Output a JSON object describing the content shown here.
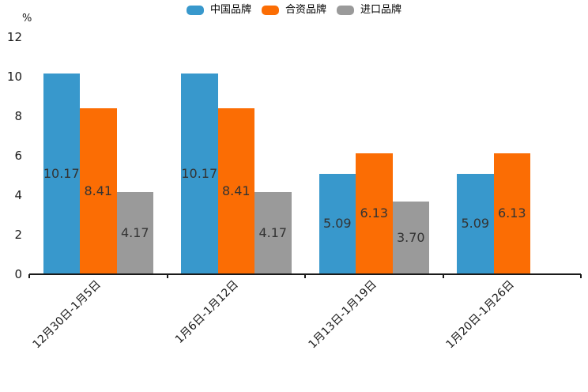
{
  "chart_data": {
    "type": "bar",
    "title": "",
    "ylabel": "%",
    "xlabel": "",
    "ylim": [
      0,
      12
    ],
    "yticks": [
      0,
      2,
      4,
      6,
      8,
      10,
      12
    ],
    "grid": false,
    "legend_position": "top",
    "value_labels": true,
    "categories": [
      "12月30日-1月5日",
      "1月6日-1月12日",
      "1月13日-1月19日",
      "1月20日-1月26日"
    ],
    "series": [
      {
        "name": "中国品牌",
        "color": "#3898CC",
        "values": [
          10.17,
          10.17,
          5.09,
          5.09
        ]
      },
      {
        "name": "合资品牌",
        "color": "#FB6D04",
        "values": [
          8.41,
          8.41,
          6.13,
          6.13
        ]
      },
      {
        "name": "进口品牌",
        "color": "#9A9A9A",
        "values": [
          4.17,
          4.17,
          3.7,
          null
        ]
      }
    ],
    "colors": {
      "axis": "#1a1a1a",
      "tick_text": "#1a1a1a",
      "value_label_text": "#333333",
      "background": "#ffffff"
    }
  }
}
